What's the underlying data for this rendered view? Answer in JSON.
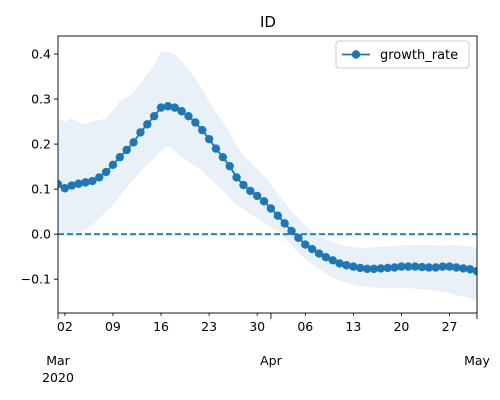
{
  "chart_data": {
    "type": "line",
    "title": "ID",
    "xlabel": "",
    "ylabel": "",
    "x_dates": [
      "2020-03-01",
      "2020-03-02",
      "2020-03-03",
      "2020-03-04",
      "2020-03-05",
      "2020-03-06",
      "2020-03-07",
      "2020-03-08",
      "2020-03-09",
      "2020-03-10",
      "2020-03-11",
      "2020-03-12",
      "2020-03-13",
      "2020-03-14",
      "2020-03-15",
      "2020-03-16",
      "2020-03-17",
      "2020-03-18",
      "2020-03-19",
      "2020-03-20",
      "2020-03-21",
      "2020-03-22",
      "2020-03-23",
      "2020-03-24",
      "2020-03-25",
      "2020-03-26",
      "2020-03-27",
      "2020-03-28",
      "2020-03-29",
      "2020-03-30",
      "2020-03-31",
      "2020-04-01",
      "2020-04-02",
      "2020-04-03",
      "2020-04-04",
      "2020-04-05",
      "2020-04-06",
      "2020-04-07",
      "2020-04-08",
      "2020-04-09",
      "2020-04-10",
      "2020-04-11",
      "2020-04-12",
      "2020-04-13",
      "2020-04-14",
      "2020-04-15",
      "2020-04-16",
      "2020-04-17",
      "2020-04-18",
      "2020-04-19",
      "2020-04-20",
      "2020-04-21",
      "2020-04-22",
      "2020-04-23",
      "2020-04-24",
      "2020-04-25",
      "2020-04-26",
      "2020-04-27",
      "2020-04-28",
      "2020-04-29",
      "2020-04-30",
      "2020-05-01"
    ],
    "series": [
      {
        "name": "growth_rate",
        "color": "#1f77b4",
        "values": [
          0.111,
          0.102,
          0.108,
          0.112,
          0.115,
          0.118,
          0.126,
          0.138,
          0.154,
          0.171,
          0.187,
          0.204,
          0.226,
          0.244,
          0.262,
          0.281,
          0.284,
          0.281,
          0.273,
          0.262,
          0.248,
          0.231,
          0.211,
          0.19,
          0.171,
          0.151,
          0.126,
          0.109,
          0.096,
          0.085,
          0.073,
          0.057,
          0.041,
          0.024,
          0.007,
          -0.008,
          -0.023,
          -0.033,
          -0.043,
          -0.051,
          -0.058,
          -0.065,
          -0.069,
          -0.072,
          -0.075,
          -0.077,
          -0.077,
          -0.076,
          -0.075,
          -0.074,
          -0.072,
          -0.072,
          -0.072,
          -0.073,
          -0.074,
          -0.074,
          -0.072,
          -0.072,
          -0.074,
          -0.076,
          -0.078,
          -0.082
        ],
        "ci_upper": [
          0.255,
          0.25,
          0.258,
          0.248,
          0.245,
          0.25,
          0.252,
          0.258,
          0.275,
          0.295,
          0.305,
          0.315,
          0.335,
          0.355,
          0.375,
          0.405,
          0.405,
          0.4,
          0.385,
          0.365,
          0.345,
          0.32,
          0.295,
          0.27,
          0.25,
          0.225,
          0.195,
          0.175,
          0.16,
          0.145,
          0.13,
          0.11,
          0.09,
          0.07,
          0.05,
          0.035,
          0.02,
          0.005,
          -0.005,
          -0.012,
          -0.018,
          -0.023,
          -0.026,
          -0.028,
          -0.03,
          -0.03,
          -0.029,
          -0.028,
          -0.027,
          -0.026,
          -0.025,
          -0.024,
          -0.024,
          -0.024,
          -0.024,
          -0.025,
          -0.026,
          -0.024,
          -0.025,
          -0.026,
          -0.027,
          -0.03
        ],
        "ci_lower": [
          0.0,
          -0.005,
          0.0,
          0.005,
          0.01,
          0.02,
          0.035,
          0.05,
          0.065,
          0.085,
          0.105,
          0.12,
          0.14,
          0.155,
          0.17,
          0.185,
          0.195,
          0.185,
          0.172,
          0.16,
          0.15,
          0.14,
          0.125,
          0.11,
          0.095,
          0.08,
          0.065,
          0.055,
          0.045,
          0.035,
          0.025,
          0.015,
          0.005,
          -0.01,
          -0.025,
          -0.04,
          -0.055,
          -0.067,
          -0.078,
          -0.088,
          -0.097,
          -0.103,
          -0.108,
          -0.112,
          -0.115,
          -0.117,
          -0.118,
          -0.119,
          -0.12,
          -0.12,
          -0.12,
          -0.12,
          -0.121,
          -0.122,
          -0.124,
          -0.126,
          -0.128,
          -0.131,
          -0.135,
          -0.139,
          -0.143,
          -0.148
        ]
      }
    ],
    "reference_line": {
      "y": 0.0,
      "style": "dashed",
      "color": "#1f77b4"
    },
    "band_color": "#1f77b4",
    "xlim": [
      "2020-03-01",
      "2020-05-01"
    ],
    "ylim": [
      -0.175,
      0.44
    ],
    "yticks": [
      -0.1,
      0.0,
      0.1,
      0.2,
      0.3,
      0.4
    ],
    "ytick_labels": [
      "−0.1",
      "0.0",
      "0.1",
      "0.2",
      "0.3",
      "0.4"
    ],
    "xticks_minor": [
      {
        "date": "2020-03-02",
        "label": "02"
      },
      {
        "date": "2020-03-09",
        "label": "09"
      },
      {
        "date": "2020-03-16",
        "label": "16"
      },
      {
        "date": "2020-03-23",
        "label": "23"
      },
      {
        "date": "2020-03-30",
        "label": "30"
      },
      {
        "date": "2020-04-06",
        "label": "06"
      },
      {
        "date": "2020-04-13",
        "label": "13"
      },
      {
        "date": "2020-04-20",
        "label": "20"
      },
      {
        "date": "2020-04-27",
        "label": "27"
      }
    ],
    "xticks_major": [
      {
        "date": "2020-03-01",
        "label": "Mar",
        "sublabel": "2020"
      },
      {
        "date": "2020-04-01",
        "label": "Apr",
        "sublabel": ""
      },
      {
        "date": "2020-05-01",
        "label": "May",
        "sublabel": ""
      }
    ],
    "legend": {
      "position": "top-right",
      "entries": [
        "growth_rate"
      ]
    },
    "grid": false
  }
}
